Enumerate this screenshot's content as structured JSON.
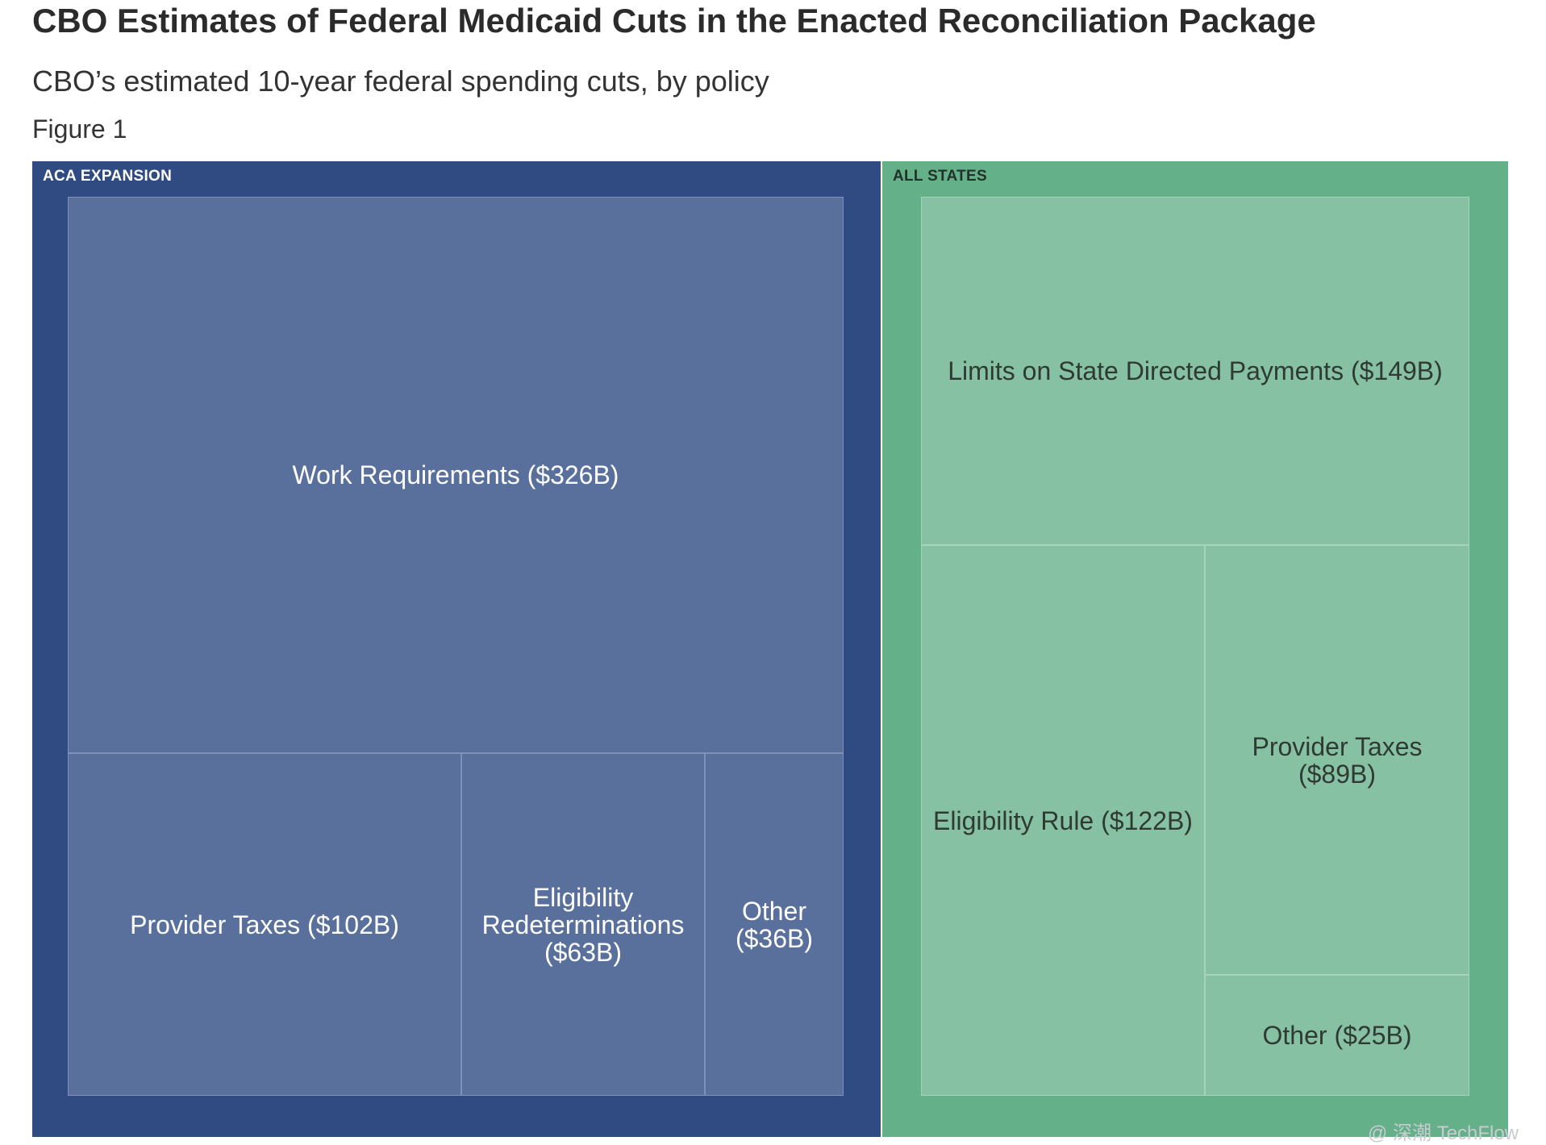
{
  "header": {
    "title": "CBO Estimates of Federal Medicaid Cuts in the Enacted Reconciliation Package",
    "subtitle": "CBO’s estimated 10-year federal spending cuts, by policy",
    "figure_label": "Figure 1"
  },
  "colors": {
    "aca_group": "#2f4b82",
    "aca_tile": "#5a709c",
    "all_group": "#64b088",
    "all_tile": "#87c1a3"
  },
  "chart_data": {
    "type": "treemap",
    "title": "CBO Estimates of Federal Medicaid Cuts in the Enacted Reconciliation Package",
    "subtitle": "CBO’s estimated 10-year federal spending cuts, by policy",
    "unit": "billions of dollars",
    "groups": [
      {
        "name": "ACA EXPANSION",
        "items": [
          {
            "name": "Work Requirements",
            "value": 326,
            "label": "Work Requirements ($326B)"
          },
          {
            "name": "Provider Taxes",
            "value": 102,
            "label": "Provider Taxes ($102B)"
          },
          {
            "name": "Eligibility Redeterminations",
            "value": 63,
            "label": "Eligibility Redeterminations ($63B)"
          },
          {
            "name": "Other",
            "value": 36,
            "label": "Other ($36B)"
          }
        ]
      },
      {
        "name": "ALL STATES",
        "items": [
          {
            "name": "Limits on State Directed Payments",
            "value": 149,
            "label": "Limits on State Directed Payments ($149B)"
          },
          {
            "name": "Eligibility Rule",
            "value": 122,
            "label": "Eligibility Rule ($122B)"
          },
          {
            "name": "Provider Taxes",
            "value": 89,
            "label": "Provider Taxes ($89B)"
          },
          {
            "name": "Other",
            "value": 25,
            "label": "Other ($25B)"
          }
        ]
      }
    ]
  },
  "watermark": "@ 深潮 TechFlow"
}
